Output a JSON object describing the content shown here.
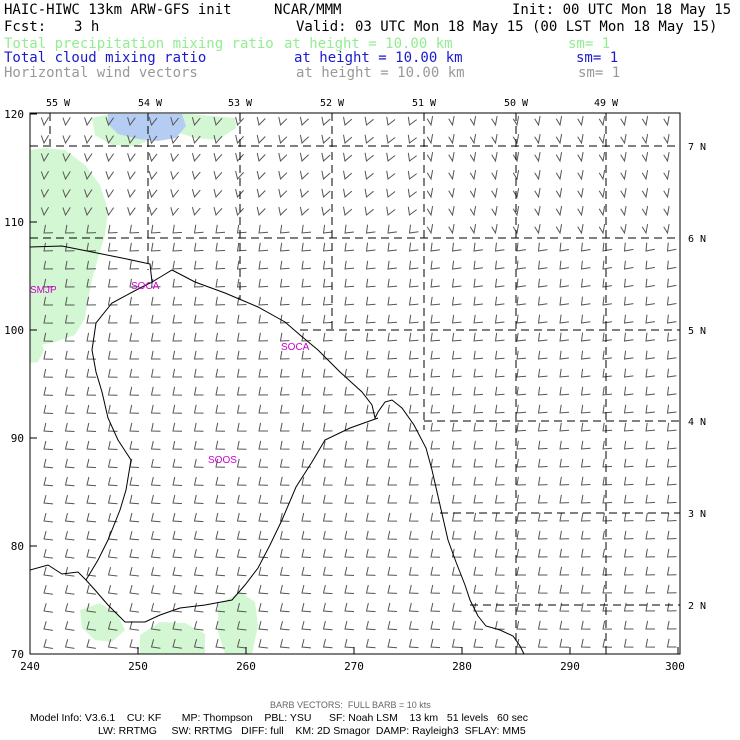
{
  "header": {
    "title": "HAIC-HIWC 13km ARW-GFS init",
    "org": "NCAR/MMM",
    "init": "Init: 00 UTC Mon 18 May 15",
    "fcst_label": "Fcst:",
    "fcst_value": "3 h",
    "valid": "Valid: 03 UTC Mon 18 May 15 (00 LST Mon 18 May 15)"
  },
  "fields": [
    {
      "name": "Total precipitation mixing ratio",
      "height": "at height = 10.00 km",
      "sm": "sm= 1",
      "color": "#90ee90"
    },
    {
      "name": "Total cloud mixing ratio",
      "height": "at height = 10.00 km",
      "sm": "sm= 1",
      "color": "#1a1acc"
    },
    {
      "name": "Horizontal wind vectors",
      "height": "at height = 10.00 km",
      "sm": "sm= 1",
      "color": "#999999"
    }
  ],
  "map": {
    "colors": {
      "frame": "#000000",
      "precip": "#d3f7d3",
      "cloud": "#b5cdf2",
      "label": "#cc00cc",
      "barb": "#555555"
    },
    "x_ticks": [
      "240",
      "250",
      "260",
      "270",
      "280",
      "290",
      "300"
    ],
    "y_ticks": [
      "70",
      "80",
      "90",
      "100",
      "110",
      "120"
    ],
    "lon_labels": [
      "55 W",
      "54 W",
      "53 W",
      "52 W",
      "51 W",
      "50 W",
      "49 W"
    ],
    "lat_labels": [
      "7 N",
      "6 N",
      "5 N",
      "4 N",
      "3 N",
      "2 N"
    ],
    "stations": [
      "SMJP",
      "SOCA",
      "SOCA",
      "SOOS"
    ]
  },
  "footer": {
    "barb_note": "BARB VECTORS:  FULL BARB = 10 kts",
    "line1": "Model Info: V3.6.1    CU: KF       MP: Thompson    PBL: YSU      SF: Noah LSM    13 km   51 levels   60 sec",
    "line2": "LW: RRTMG     SW: RRTMG   DIFF: full    KM: 2D Smagor  DAMP: Rayleigh3  SFLAY: MM5"
  }
}
